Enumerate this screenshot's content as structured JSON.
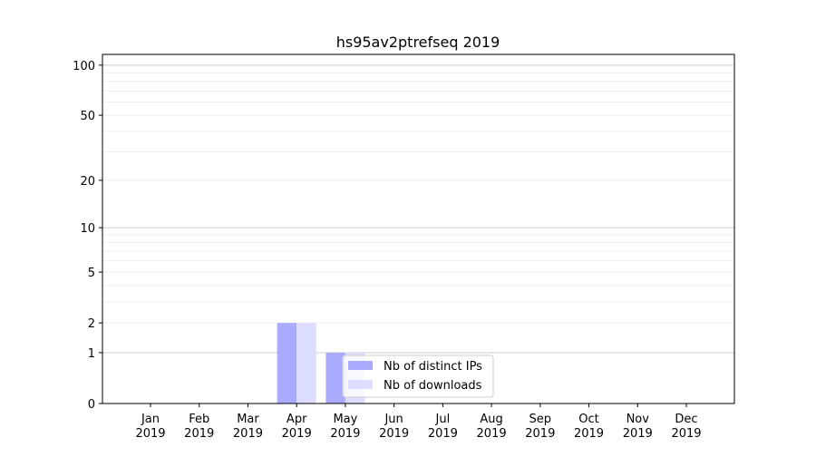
{
  "chart_data": {
    "type": "bar",
    "title": "hs95av2ptrefseq 2019",
    "xlabel": "",
    "ylabel": "",
    "yscale": "log(1+y)",
    "ylim": [
      0,
      116
    ],
    "yticks": [
      0,
      1,
      2,
      5,
      10,
      20,
      50,
      100
    ],
    "grid": true,
    "legend_placement": "lower center",
    "categories": [
      "Jan\n2019",
      "Feb\n2019",
      "Mar\n2019",
      "Apr\n2019",
      "May\n2019",
      "Jun\n2019",
      "Jul\n2019",
      "Aug\n2019",
      "Sep\n2019",
      "Oct\n2019",
      "Nov\n2019",
      "Dec\n2019"
    ],
    "series": [
      {
        "name": "Nb of distinct IPs",
        "color": "#aaaaff",
        "values": [
          0,
          0,
          0,
          2,
          1,
          0,
          0,
          0,
          0,
          0,
          0,
          0
        ]
      },
      {
        "name": "Nb of downloads",
        "color": "#ddddff",
        "values": [
          0,
          0,
          0,
          2,
          1,
          0,
          0,
          0,
          0,
          0,
          0,
          0
        ]
      }
    ]
  }
}
